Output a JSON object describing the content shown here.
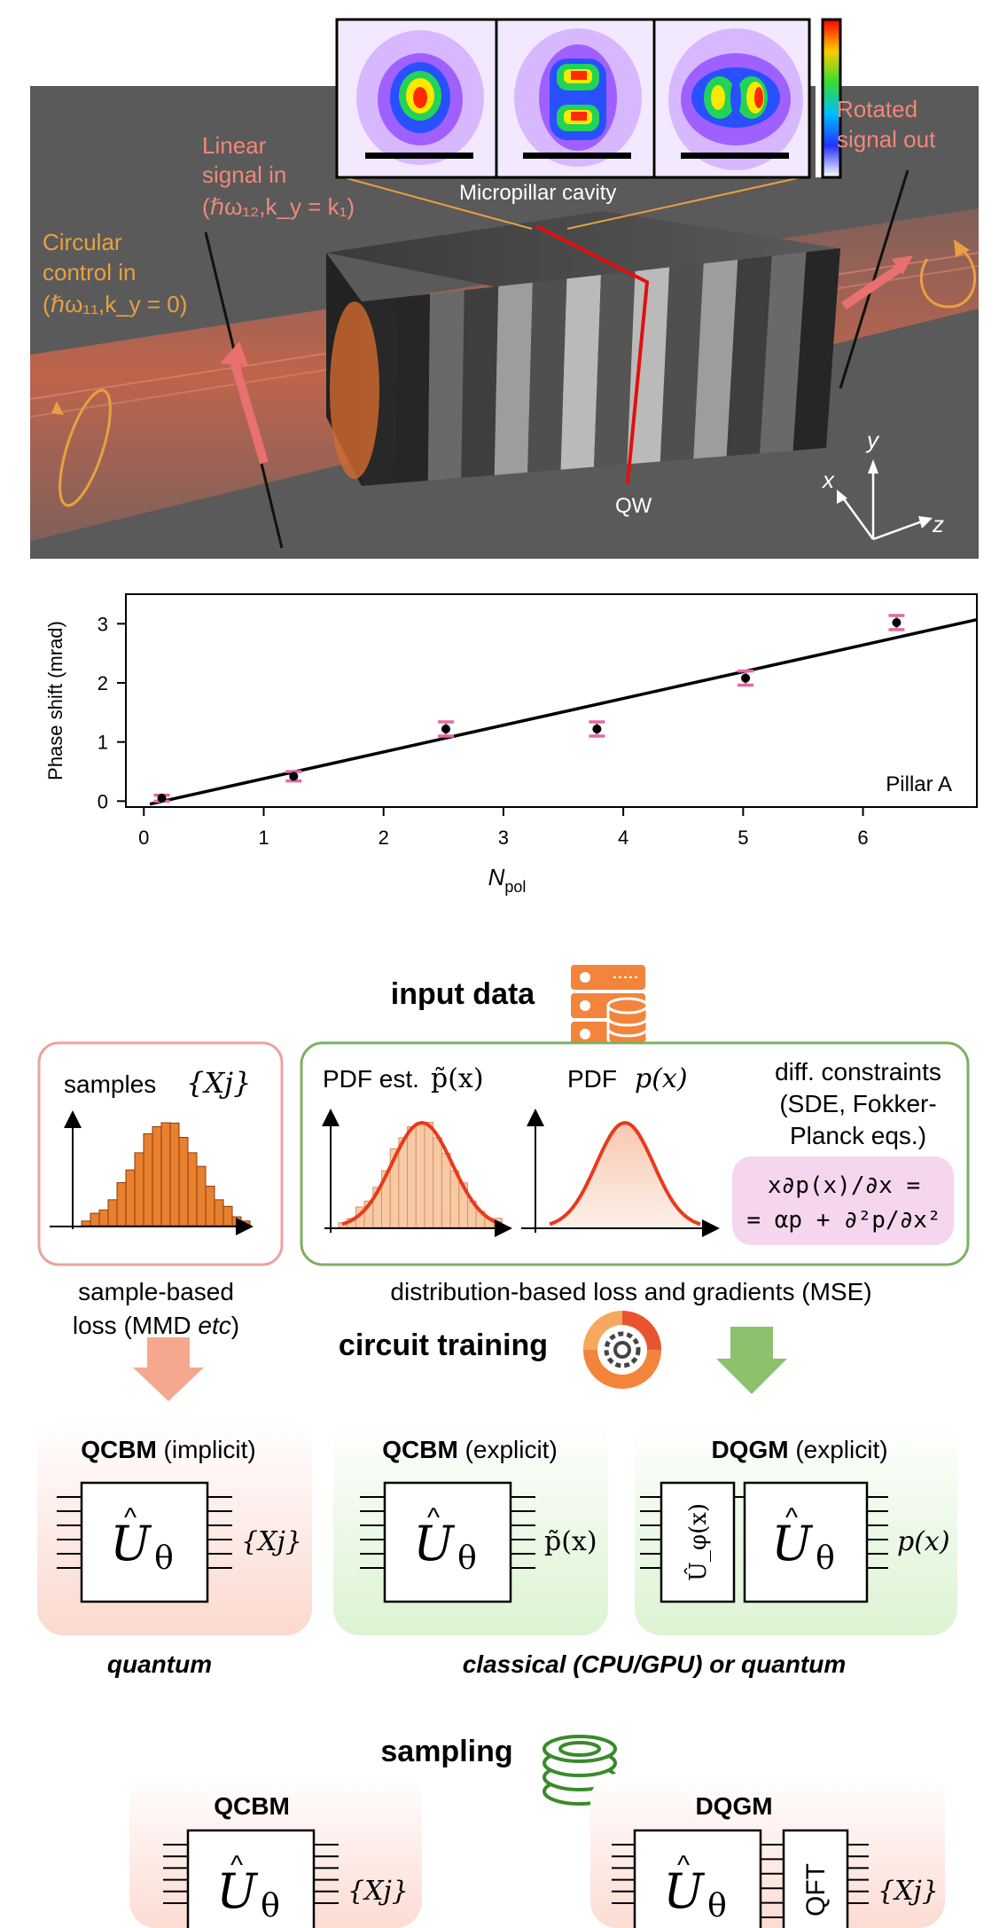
{
  "figure_top": {
    "linear_signal": {
      "line1": "Linear",
      "line2": "signal in",
      "line3": "(ℏω₁₂,k_y = k₁)"
    },
    "circular_control": {
      "line1": "Circular",
      "line2": "control in",
      "line3": "(ℏω₁₁,k_y = 0)"
    },
    "micropillar_label": "Micropillar cavity",
    "rotated_signal": {
      "line1": "Rotated",
      "line2": "signal out"
    },
    "qw_label": "QW",
    "axes": {
      "x": "x",
      "y": "y",
      "z": "z"
    },
    "colors": {
      "background": "#5a5a5a",
      "beam": "#c8604a",
      "orange": "#e8a040",
      "salmon": "#f08878",
      "cavity_line": "#e01010"
    }
  },
  "phase_plot": {
    "chart_data": {
      "type": "scatter",
      "xlabel": "N",
      "xlabel_sub": "pol",
      "ylabel": "Phase shift (mrad)",
      "annotation": "Pillar A",
      "xlim": [
        -0.15,
        6.95
      ],
      "ylim": [
        -0.1,
        3.5
      ],
      "xticks": [
        0,
        1,
        2,
        3,
        4,
        5,
        6
      ],
      "yticks": [
        0,
        1,
        2,
        3
      ],
      "points": [
        {
          "x": 0.15,
          "y": 0.05,
          "err": 0.05
        },
        {
          "x": 1.25,
          "y": 0.42,
          "err": 0.08
        },
        {
          "x": 2.52,
          "y": 1.22,
          "err": 0.12
        },
        {
          "x": 3.78,
          "y": 1.22,
          "err": 0.12
        },
        {
          "x": 5.02,
          "y": 2.08,
          "err": 0.12
        },
        {
          "x": 6.28,
          "y": 3.02,
          "err": 0.12
        }
      ],
      "fit_line": {
        "x0": 0.05,
        "y0": -0.05,
        "x1": 6.95,
        "y1": 3.07
      },
      "colors": {
        "errorbar": "#e26aa6",
        "point": "#000000",
        "line": "#000000"
      }
    }
  },
  "workflow": {
    "input_data": "input data",
    "samples_label": "samples",
    "samples_set": "{Xj}",
    "pdf_est_label": "PDF est.",
    "pdf_est_fn": "p̃(x)",
    "pdf_label": "PDF",
    "pdf_fn": "p(x)",
    "diff_constraints": {
      "line1": "diff. constraints",
      "line2": "(SDE, Fokker-",
      "line3": "Planck eqs.)"
    },
    "equation": {
      "line1": "x∂p(x)/∂x =",
      "line2": "= αp + ∂²p/∂x²"
    },
    "sample_loss": {
      "line1": "sample-based",
      "line2_a": "loss (MMD ",
      "line2_b": "etc",
      "line2_c": ")"
    },
    "dist_loss": "distribution-based loss and gradients (MSE)",
    "circuit_training": "circuit training",
    "qcbm_implicit": {
      "bold": "QCBM",
      "rest": "(implicit)"
    },
    "qcbm_explicit": {
      "bold": "QCBM",
      "rest": "(explicit)"
    },
    "dqgm_explicit": {
      "bold": "DQGM",
      "rest": "(explicit)"
    },
    "u_theta": "U",
    "theta": "θ",
    "u_phi": "Û_φ(x)",
    "out_xj": "{Xj}",
    "out_ptilde": "p̃(x)",
    "out_px": "p(x)",
    "quantum": "quantum",
    "classical": "classical (CPU/GPU) or quantum",
    "sampling": "sampling",
    "qcbm_sampling": "QCBM",
    "dqgm_sampling": "DQGM",
    "qft": "QFT",
    "colors": {
      "pink_panel": "#fbe3de",
      "pink_border": "#e9a4a0",
      "green_panel": "#e3f4dd",
      "green_border": "#7cb061",
      "orange_bar": "#e8802e",
      "red_curve": "#e83a1a",
      "arrow_pink": "#f6a88e",
      "arrow_green": "#8cc26e"
    },
    "icons": [
      "database-icon",
      "gear-cycle-icon",
      "coin-stack-icon"
    ]
  }
}
